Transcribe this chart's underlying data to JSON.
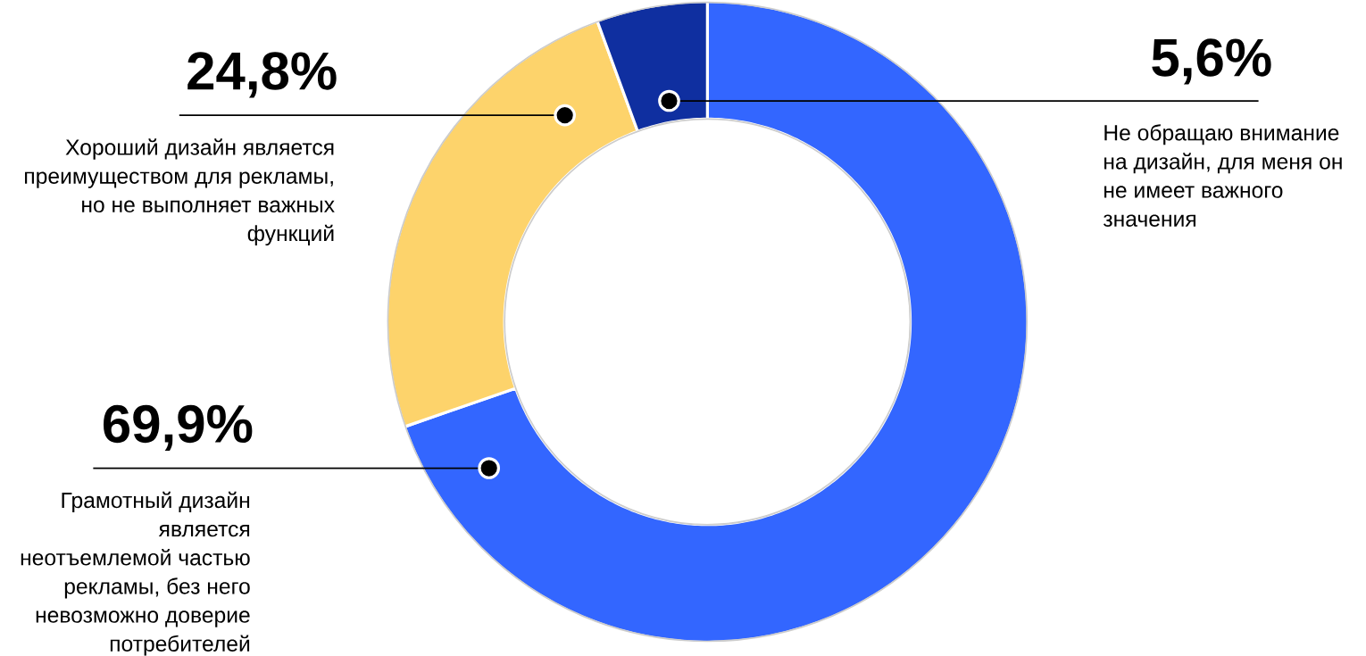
{
  "chart_data": {
    "type": "donut",
    "categories": [
      "Грамотный дизайн является неотъемлемой частью рекламы, без него невозможно доверие потребителей",
      "Хороший дизайн является преимуществом для рекламы, но не выполняет важных функций",
      "Не обращаю внимание на дизайн, для меня он не имеет важного значения"
    ],
    "values": [
      69.9,
      24.8,
      5.6
    ],
    "colors": [
      "#3366ff",
      "#fdd36b",
      "#0f2fa0"
    ],
    "value_labels": [
      "69,9%",
      "24,8%",
      "5,6%"
    ]
  }
}
